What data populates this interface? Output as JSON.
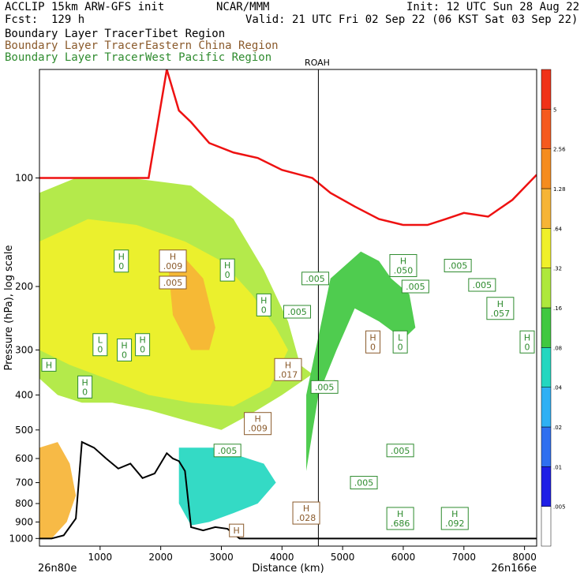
{
  "header": {
    "model": "ACCLIP 15km ARW-GFS init",
    "org": "NCAR/MMM",
    "init": "Init: 12 UTC Sun 28 Aug 22",
    "fcst": "Fcst:  129 h",
    "valid": "Valid: 21 UTC Fri 02 Sep 22 (06 KST Sat 03 Sep 22)",
    "tracers": [
      {
        "label": "Boundary Layer Tracer",
        "region": "Tibet Region",
        "color": "#000000"
      },
      {
        "label": "Boundary Layer Tracer",
        "region": "Eastern China Region",
        "color": "#8a5a2b"
      },
      {
        "label": "Boundary Layer Tracer",
        "region": "West Pacific Region",
        "color": "#2e8b2e"
      }
    ]
  },
  "chart_data": {
    "type": "cross-section",
    "ylabel": "Pressure (hPa), log scale",
    "xlabel": "Distance (km)",
    "x_ticks": [
      1000,
      2000,
      3000,
      4000,
      5000,
      6000,
      7000,
      8000
    ],
    "y_ticks": [
      100,
      200,
      300,
      400,
      500,
      600,
      700,
      800,
      900,
      1000
    ],
    "xlim": [
      0,
      8200
    ],
    "ylim": [
      1050,
      50
    ],
    "yscale": "log",
    "left_endpoint": "26n80e",
    "right_endpoint": "26n166e",
    "marker": {
      "label": "ROAH",
      "x": 4600
    },
    "colorbar": {
      "labels": [
        ".005",
        ".01",
        ".02",
        ".04",
        ".08",
        ".16",
        ".32",
        ".64",
        "1.28",
        "2.56",
        "5"
      ],
      "colors": [
        "#ffffff",
        "#1e1ee6",
        "#2f6ff0",
        "#2fb0f4",
        "#23d7c0",
        "#40c840",
        "#aee83c",
        "#f0f02a",
        "#f6b436",
        "#f58c1e",
        "#f55a1e",
        "#f03218"
      ]
    },
    "tropopause": {
      "x": [
        0,
        500,
        1000,
        1400,
        1800,
        2100,
        2300,
        2500,
        2800,
        3200,
        3600,
        4000,
        4500,
        4800,
        5200,
        5600,
        6000,
        6400,
        6700,
        7000,
        7400,
        7800,
        8200
      ],
      "p": [
        100,
        100,
        100,
        100,
        100,
        50,
        65,
        70,
        80,
        85,
        88,
        95,
        100,
        110,
        120,
        130,
        135,
        135,
        130,
        125,
        128,
        115,
        98
      ]
    },
    "terrain": {
      "x": [
        0,
        200,
        400,
        600,
        700,
        900,
        1100,
        1300,
        1500,
        1700,
        1900,
        2100,
        2200,
        2300,
        2400,
        2500,
        2700,
        2900,
        3100,
        3300,
        3500,
        4000,
        4500,
        5000,
        6000,
        7000,
        8200
      ],
      "p": [
        1000,
        1000,
        980,
        880,
        540,
        560,
        600,
        640,
        620,
        680,
        660,
        580,
        600,
        610,
        650,
        930,
        950,
        930,
        940,
        1000,
        1000,
        1000,
        1000,
        1000,
        1000,
        1000,
        1000
      ]
    },
    "tracer_regions": [
      {
        "name": "upper",
        "x": [
          0,
          600,
          1500,
          2500,
          3200,
          3700,
          4100,
          4300,
          4500,
          4000,
          3500,
          3000,
          2400,
          1800,
          1200,
          700,
          300,
          0
        ],
        "p": [
          110,
          100,
          100,
          105,
          130,
          180,
          250,
          330,
          350,
          400,
          450,
          500,
          470,
          440,
          420,
          420,
          400,
          360
        ],
        "level": ".16"
      },
      {
        "name": "core",
        "x": [
          0,
          800,
          1600,
          2400,
          3000,
          3500,
          3900,
          4100,
          3800,
          3200,
          2500,
          1800,
          1100,
          500,
          0
        ],
        "p": [
          150,
          130,
          135,
          150,
          170,
          210,
          260,
          300,
          380,
          430,
          420,
          400,
          360,
          330,
          300
        ],
        "level": ".32"
      },
      {
        "name": "orange1",
        "x": [
          2100,
          2300,
          2700,
          2900,
          2800,
          2500,
          2200
        ],
        "p": [
          160,
          160,
          190,
          260,
          300,
          300,
          240
        ],
        "level": ".64"
      },
      {
        "name": "orange2",
        "x": [
          0,
          300,
          500,
          600,
          450,
          200,
          0
        ],
        "p": [
          560,
          540,
          620,
          760,
          900,
          1000,
          1000
        ],
        "level": ".64"
      },
      {
        "name": "lowblue",
        "x": [
          2300,
          2900,
          3300,
          3700,
          3900,
          3600,
          3200,
          2800,
          2500,
          2300
        ],
        "p": [
          560,
          560,
          590,
          620,
          700,
          800,
          850,
          900,
          920,
          800
        ],
        "level": ".04"
      },
      {
        "name": "pacific",
        "x": [
          4400,
          4800,
          5300,
          5600,
          5800,
          6100,
          6200,
          6000,
          5600,
          5200,
          4900,
          4600,
          4400
        ],
        "p": [
          400,
          190,
          160,
          170,
          190,
          210,
          260,
          280,
          250,
          230,
          300,
          400,
          650
        ],
        "level": ".08"
      }
    ],
    "labels": [
      {
        "type": "H",
        "value": "0",
        "x": 1350,
        "p": 170,
        "color": "green-box"
      },
      {
        "type": "H",
        "value": ".009",
        "x": 2200,
        "p": 170,
        "color": "brown"
      },
      {
        "type": "",
        "value": ".005",
        "x": 2200,
        "p": 195,
        "color": "brown"
      },
      {
        "type": "H",
        "value": "0",
        "x": 3100,
        "p": 180,
        "color": "green-box"
      },
      {
        "type": "H",
        "value": "0",
        "x": 3700,
        "p": 225,
        "color": "green-box"
      },
      {
        "type": "L",
        "value": "0",
        "x": 1000,
        "p": 290,
        "color": "green-box"
      },
      {
        "type": "H",
        "value": "0",
        "x": 1700,
        "p": 290,
        "color": "green-box"
      },
      {
        "type": "H",
        "value": "0",
        "x": 1400,
        "p": 300,
        "color": "green-box"
      },
      {
        "type": "H",
        "value": "",
        "x": 0,
        "p": 330,
        "color": "green-box"
      },
      {
        "type": "H",
        "value": "0",
        "x": 750,
        "p": 380,
        "color": "green-box"
      },
      {
        "type": "H",
        "value": ".017",
        "x": 4100,
        "p": 340,
        "color": "brown"
      },
      {
        "type": "",
        "value": ".005",
        "x": 4700,
        "p": 380,
        "color": "green-box"
      },
      {
        "type": "H",
        "value": ".009",
        "x": 3600,
        "p": 480,
        "color": "brown"
      },
      {
        "type": "",
        "value": ".005",
        "x": 3100,
        "p": 570,
        "color": "green-box"
      },
      {
        "type": "H",
        "value": ".050",
        "x": 6000,
        "p": 175,
        "color": "green-box"
      },
      {
        "type": "",
        "value": ".005",
        "x": 6900,
        "p": 175,
        "color": "green-box"
      },
      {
        "type": "",
        "value": ".005",
        "x": 7300,
        "p": 198,
        "color": "green-box"
      },
      {
        "type": "",
        "value": ".005",
        "x": 6200,
        "p": 200,
        "color": "green-box"
      },
      {
        "type": "H",
        "value": ".057",
        "x": 7600,
        "p": 230,
        "color": "green-box"
      },
      {
        "type": "L",
        "value": "0",
        "x": 5950,
        "p": 285,
        "color": "green-box"
      },
      {
        "type": "H",
        "value": "0",
        "x": 5500,
        "p": 285,
        "color": "brown"
      },
      {
        "type": "H",
        "value": "0",
        "x": 8100,
        "p": 285,
        "color": "green-box"
      },
      {
        "type": "",
        "value": ".005",
        "x": 5950,
        "p": 570,
        "color": "green-box"
      },
      {
        "type": "",
        "value": ".005",
        "x": 5350,
        "p": 700,
        "color": "green-box"
      },
      {
        "type": "H",
        "value": ".028",
        "x": 4400,
        "p": 850,
        "color": "brown"
      },
      {
        "type": "H",
        "value": ".686",
        "x": 5950,
        "p": 880,
        "color": "green-box"
      },
      {
        "type": "H",
        "value": ".092",
        "x": 6850,
        "p": 880,
        "color": "green-box"
      },
      {
        "type": "H",
        "value": "",
        "x": 3250,
        "p": 950,
        "color": "brown"
      },
      {
        "type": "",
        "value": ".005",
        "x": 4550,
        "p": 190,
        "color": "green-box"
      },
      {
        "type": "",
        "value": ".005",
        "x": 4250,
        "p": 235,
        "color": "green-box"
      }
    ]
  }
}
